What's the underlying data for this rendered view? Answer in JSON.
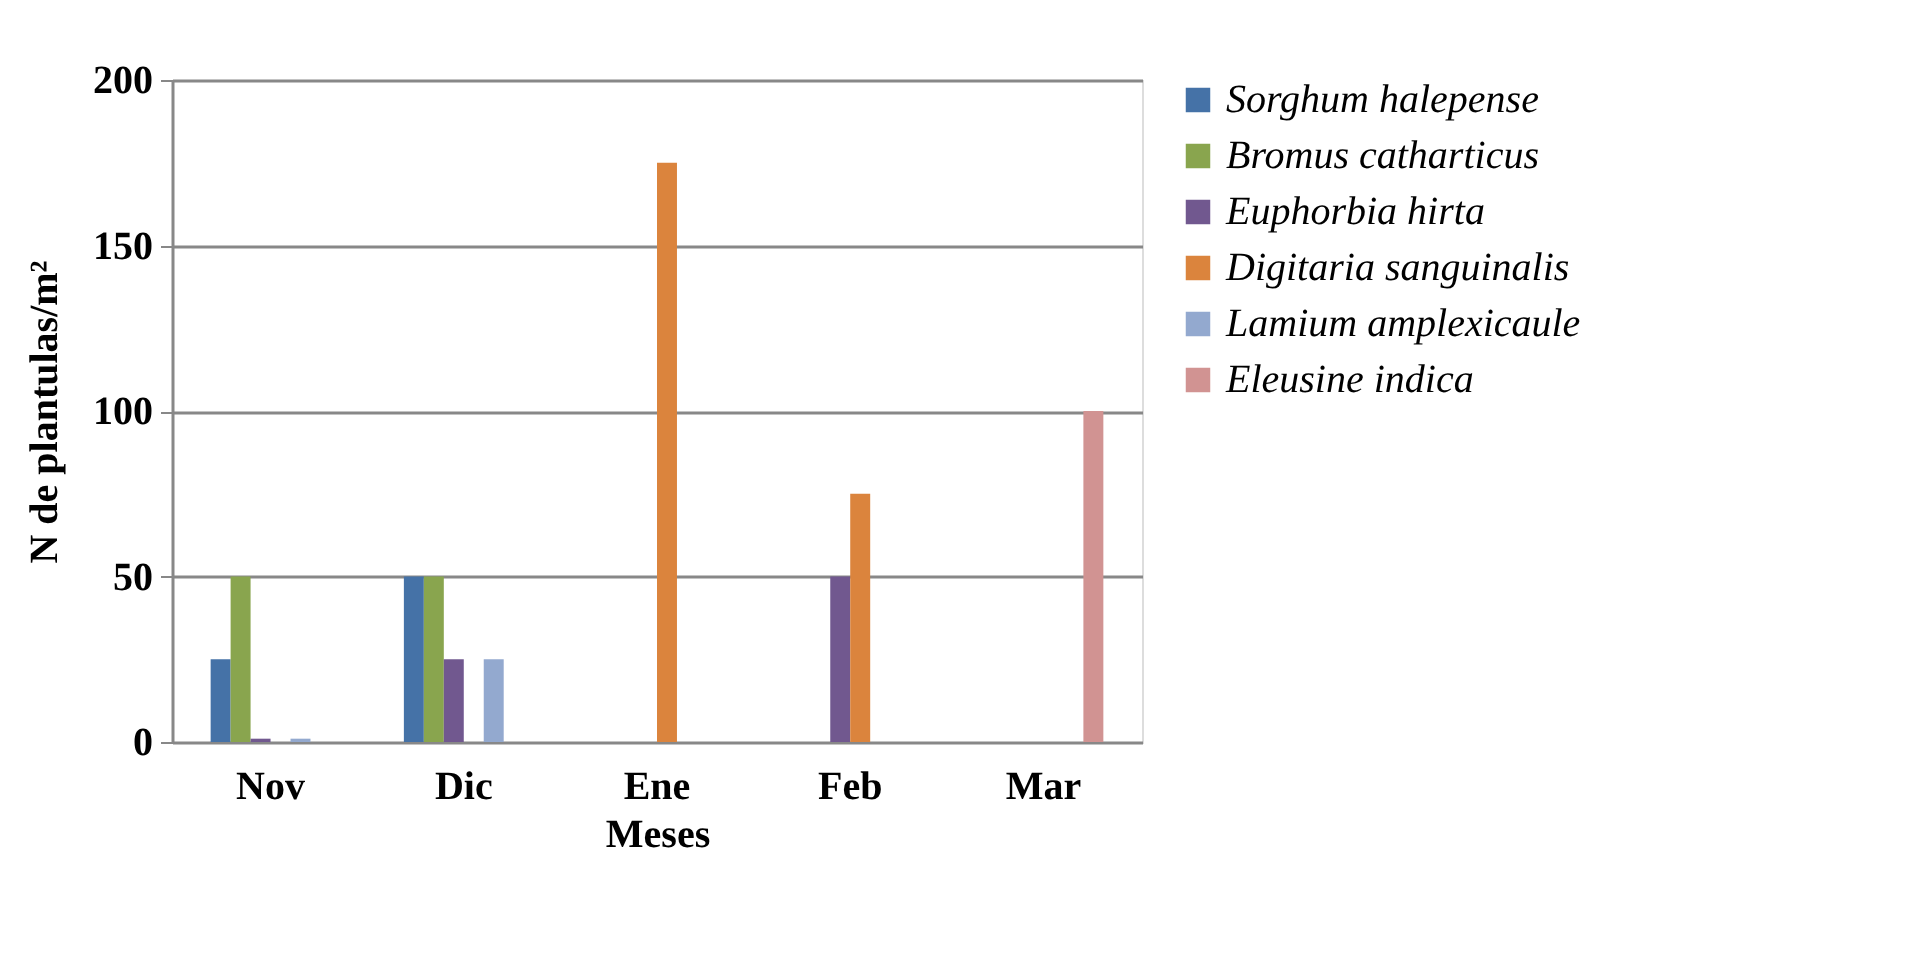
{
  "chart_data": {
    "type": "bar",
    "xlabel": "Meses",
    "ylabel": "N   de plantulas/m²",
    "categories": [
      "Nov",
      "Dic",
      "Ene",
      "Feb",
      "Mar"
    ],
    "series": [
      {
        "name": "Sorghum halepense",
        "color": "#4572a7",
        "values": [
          25,
          50,
          0,
          0,
          0
        ]
      },
      {
        "name": "Bromus catharticus",
        "color": "#89a54e",
        "values": [
          50,
          50,
          0,
          0,
          0
        ]
      },
      {
        "name": "Euphorbia hirta",
        "color": "#71588f",
        "values": [
          1,
          25,
          0,
          50,
          0
        ]
      },
      {
        "name": "Digitaria sanguinalis",
        "color": "#db843d",
        "values": [
          0,
          0,
          175,
          75,
          0
        ]
      },
      {
        "name": "Lamium amplexicaule",
        "color": "#93a9cf",
        "values": [
          1,
          25,
          0,
          0,
          0
        ]
      },
      {
        "name": "Eleusine indica",
        "color": "#d19392",
        "values": [
          0,
          0,
          0,
          0,
          100
        ]
      }
    ],
    "ylim": [
      0,
      200
    ],
    "yticks": [
      0,
      50,
      100,
      150,
      200
    ],
    "grid": "y",
    "legend": "right"
  }
}
